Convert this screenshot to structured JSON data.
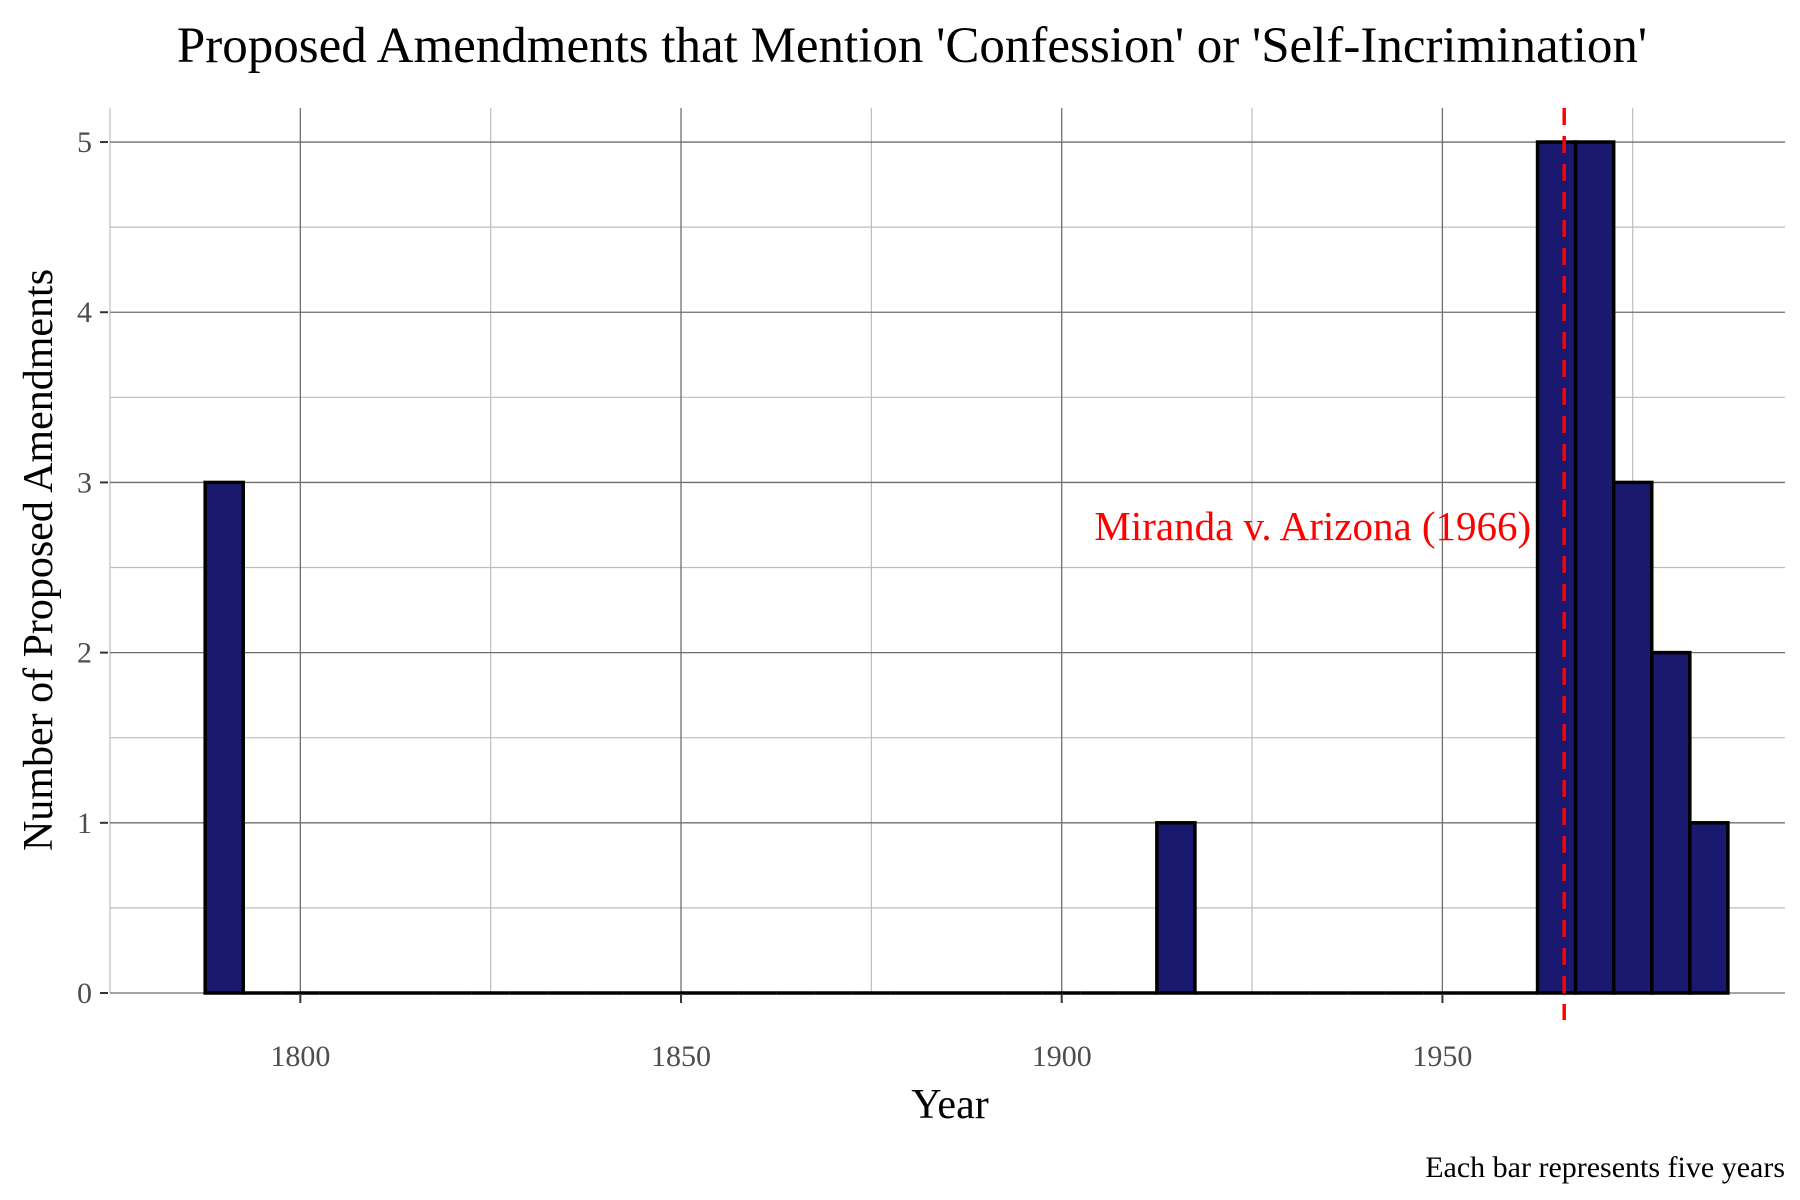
{
  "chart_data": {
    "type": "bar",
    "title": "Proposed Amendments that Mention 'Confession' or 'Self-Incrimination'",
    "xlabel": "Year",
    "ylabel": "Number of Proposed Amendments",
    "caption": "Each bar represents five years",
    "xlim": [
      1775,
      1995
    ],
    "ylim": [
      0,
      5.2
    ],
    "x_ticks": [
      {
        "value": 1800,
        "label": "1800"
      },
      {
        "value": 1850,
        "label": "1850"
      },
      {
        "value": 1900,
        "label": "1900"
      },
      {
        "value": 1950,
        "label": "1950"
      }
    ],
    "y_ticks": [
      {
        "value": 0,
        "label": "0"
      },
      {
        "value": 1,
        "label": "1"
      },
      {
        "value": 2,
        "label": "2"
      },
      {
        "value": 3,
        "label": "3"
      },
      {
        "value": 4,
        "label": "4"
      },
      {
        "value": 5,
        "label": "5"
      }
    ],
    "bin_width": 5,
    "bins": [
      {
        "start": 1787.5,
        "value": 3
      },
      {
        "start": 1792.5,
        "value": 0
      },
      {
        "start": 1797.5,
        "value": 0
      },
      {
        "start": 1802.5,
        "value": 0
      },
      {
        "start": 1807.5,
        "value": 0
      },
      {
        "start": 1812.5,
        "value": 0
      },
      {
        "start": 1817.5,
        "value": 0
      },
      {
        "start": 1822.5,
        "value": 0
      },
      {
        "start": 1827.5,
        "value": 0
      },
      {
        "start": 1832.5,
        "value": 0
      },
      {
        "start": 1837.5,
        "value": 0
      },
      {
        "start": 1842.5,
        "value": 0
      },
      {
        "start": 1847.5,
        "value": 0
      },
      {
        "start": 1852.5,
        "value": 0
      },
      {
        "start": 1857.5,
        "value": 0
      },
      {
        "start": 1862.5,
        "value": 0
      },
      {
        "start": 1867.5,
        "value": 0
      },
      {
        "start": 1872.5,
        "value": 0
      },
      {
        "start": 1877.5,
        "value": 0
      },
      {
        "start": 1882.5,
        "value": 0
      },
      {
        "start": 1887.5,
        "value": 0
      },
      {
        "start": 1892.5,
        "value": 0
      },
      {
        "start": 1897.5,
        "value": 0
      },
      {
        "start": 1902.5,
        "value": 0
      },
      {
        "start": 1907.5,
        "value": 0
      },
      {
        "start": 1912.5,
        "value": 1
      },
      {
        "start": 1917.5,
        "value": 0
      },
      {
        "start": 1922.5,
        "value": 0
      },
      {
        "start": 1927.5,
        "value": 0
      },
      {
        "start": 1932.5,
        "value": 0
      },
      {
        "start": 1937.5,
        "value": 0
      },
      {
        "start": 1942.5,
        "value": 0
      },
      {
        "start": 1947.5,
        "value": 0
      },
      {
        "start": 1952.5,
        "value": 0
      },
      {
        "start": 1957.5,
        "value": 0
      },
      {
        "start": 1962.5,
        "value": 5
      },
      {
        "start": 1967.5,
        "value": 5
      },
      {
        "start": 1972.5,
        "value": 3
      },
      {
        "start": 1977.5,
        "value": 2
      },
      {
        "start": 1982.5,
        "value": 1
      }
    ],
    "bar_fill": "#191970",
    "bar_outline": "#000000",
    "grid": true,
    "vline": {
      "x": 1966,
      "color": "#ff0000",
      "style": "dashed",
      "label": "Miranda v. Arizona (1966)",
      "label_y": 2.65
    }
  }
}
